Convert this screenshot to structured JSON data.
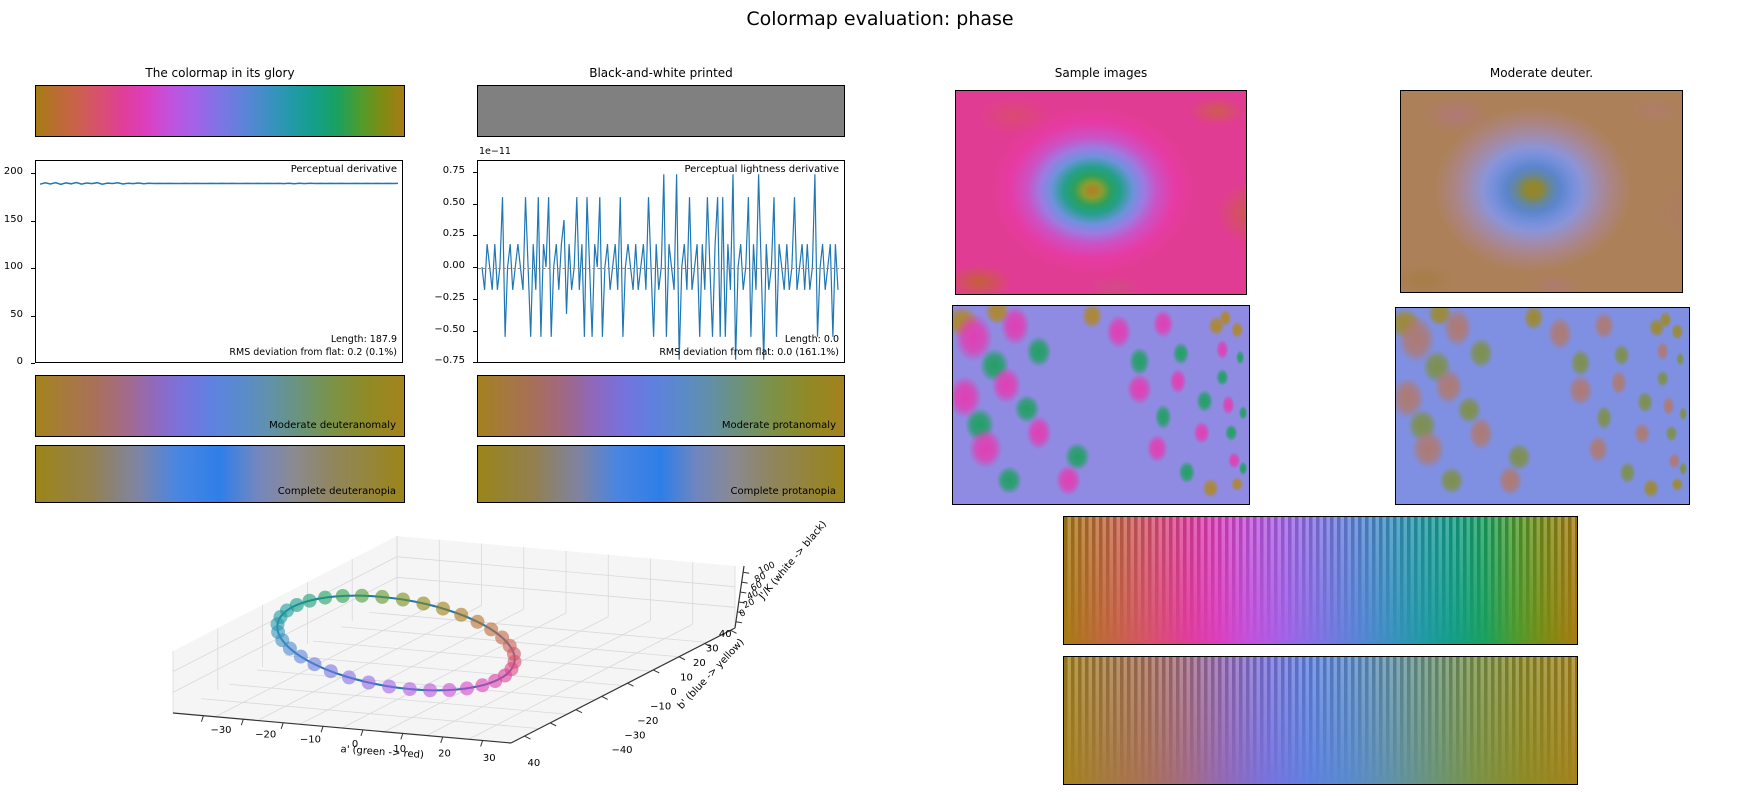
{
  "figure": {
    "title": "Colormap evaluation: phase"
  },
  "panels": {
    "glory_title": "The colormap in its glory",
    "bw_title": "Black-and-white printed",
    "samples_title": "Sample images",
    "deuter_title": "Moderate deuter."
  },
  "deriv_plot": {
    "legend": "Perceptual derivative",
    "ytick_labels": [
      "200",
      "150",
      "100",
      "50",
      "0"
    ],
    "annotation_line1": "Length: 187.9",
    "annotation_line2": "RMS deviation from flat: 0.2 (0.1%)"
  },
  "lightness_plot": {
    "legend": "Perceptual lightness derivative",
    "offset_label": "1e−11",
    "ytick_labels": [
      "0.75",
      "0.50",
      "0.25",
      "0.00",
      "−0.25",
      "−0.50",
      "−0.75"
    ],
    "annotation_line1": "Length: 0.0",
    "annotation_line2": "RMS deviation from flat: 0.0 (161.1%)"
  },
  "cvd_bars": {
    "deuteranomaly_label": "Moderate deuteranomaly",
    "deuteranopia_label": "Complete deuteranopia",
    "protanomaly_label": "Moderate protanomaly",
    "protanopia_label": "Complete protanopia"
  },
  "axes3d": {
    "xlabel": "a' (green -> red)",
    "ylabel": "b' (blue -> yellow)",
    "zlabel": "J'/K (white -> black)",
    "xtick_labels": [
      "−30",
      "−20",
      "−10",
      "0",
      "10",
      "20",
      "30",
      "40"
    ],
    "ytick_labels": [
      "−40",
      "−30",
      "−20",
      "−10",
      "0",
      "10",
      "20",
      "30",
      "40"
    ],
    "ztick_labels": [
      "0",
      "20",
      "40",
      "60",
      "80",
      "100"
    ]
  },
  "colors": {
    "line_blue": "#1f77b4",
    "gray_bar": "#808080",
    "grid_gray": "#d9d9d9",
    "pane_gray": "#f5f5f5",
    "zero_dash": "#8a8a8a"
  },
  "gradients": {
    "phase": [
      [
        0,
        "#A77B13"
      ],
      [
        0.06,
        "#BB6C33"
      ],
      [
        0.12,
        "#CC5F50"
      ],
      [
        0.18,
        "#DA4E74"
      ],
      [
        0.24,
        "#E03D9B"
      ],
      [
        0.3,
        "#DC3FBE"
      ],
      [
        0.36,
        "#C351DC"
      ],
      [
        0.43,
        "#A362E8"
      ],
      [
        0.5,
        "#7E74E4"
      ],
      [
        0.57,
        "#5A84D8"
      ],
      [
        0.64,
        "#3992C0"
      ],
      [
        0.7,
        "#219AA5"
      ],
      [
        0.76,
        "#149F88"
      ],
      [
        0.82,
        "#1AA15F"
      ],
      [
        0.88,
        "#4D9C2E"
      ],
      [
        0.94,
        "#7E8C14"
      ],
      [
        1,
        "#A77B13"
      ]
    ],
    "deuteranomaly": [
      [
        0,
        "#A4831D"
      ],
      [
        0.08,
        "#A67A3E"
      ],
      [
        0.16,
        "#A97158"
      ],
      [
        0.24,
        "#A46B85"
      ],
      [
        0.32,
        "#9169BC"
      ],
      [
        0.4,
        "#7873DE"
      ],
      [
        0.48,
        "#5F82E0"
      ],
      [
        0.56,
        "#5A8BCC"
      ],
      [
        0.64,
        "#6192A8"
      ],
      [
        0.72,
        "#6B9478"
      ],
      [
        0.8,
        "#7A9349"
      ],
      [
        0.9,
        "#8F8B25"
      ],
      [
        1,
        "#A4831D"
      ]
    ],
    "deuteranopia": [
      [
        0,
        "#9B8519"
      ],
      [
        0.15,
        "#948150"
      ],
      [
        0.28,
        "#7F84A6"
      ],
      [
        0.38,
        "#4A86E2"
      ],
      [
        0.5,
        "#2E7FE9"
      ],
      [
        0.6,
        "#7287C0"
      ],
      [
        0.7,
        "#8B8A92"
      ],
      [
        0.8,
        "#908660"
      ],
      [
        1,
        "#9B8519"
      ]
    ],
    "protanomaly": [
      [
        0,
        "#A3811E"
      ],
      [
        0.08,
        "#A57840"
      ],
      [
        0.16,
        "#A66E5C"
      ],
      [
        0.24,
        "#A06887"
      ],
      [
        0.32,
        "#8D68BE"
      ],
      [
        0.4,
        "#7672DE"
      ],
      [
        0.48,
        "#5E81DE"
      ],
      [
        0.56,
        "#5B8AC8"
      ],
      [
        0.64,
        "#6390A4"
      ],
      [
        0.72,
        "#6D9276"
      ],
      [
        0.8,
        "#7C914A"
      ],
      [
        0.9,
        "#908A26"
      ],
      [
        1,
        "#A3811E"
      ]
    ],
    "protanopia": [
      [
        0,
        "#9A8419"
      ],
      [
        0.15,
        "#93804E"
      ],
      [
        0.28,
        "#7E83A4"
      ],
      [
        0.38,
        "#4A85E0"
      ],
      [
        0.5,
        "#2E7EE8"
      ],
      [
        0.6,
        "#7186BE"
      ],
      [
        0.7,
        "#8A8990"
      ],
      [
        0.8,
        "#8F855E"
      ],
      [
        1,
        "#9A8419"
      ]
    ],
    "bw": [
      [
        0,
        "#808080"
      ],
      [
        1,
        "#808080"
      ]
    ]
  },
  "samples": {
    "starburst": {
      "base": "#E13C93",
      "center_pos": [
        47,
        49
      ],
      "center_size": [
        46,
        54
      ],
      "ring_colors": [
        "#B97B27",
        "#8D9C2E",
        "#2CA05C",
        "#23A089",
        "#6E92DC",
        "#9C7BE2",
        "#CC51C4",
        "#E63BA4"
      ],
      "blobs": [
        [
          8,
          94,
          16,
          12,
          "#C46038"
        ],
        [
          90,
          10,
          14,
          10,
          "#CF5B50"
        ],
        [
          101,
          60,
          16,
          22,
          "#CD5A4E"
        ],
        [
          20,
          12,
          18,
          14,
          "#DB4A72"
        ],
        [
          55,
          97,
          14,
          9,
          "#D14B86"
        ]
      ]
    },
    "starburst_deuter": {
      "base": "#AC8159",
      "center_pos": [
        47,
        49
      ],
      "center_size": [
        46,
        54
      ],
      "ring_colors": [
        "#9A8626",
        "#8B873A",
        "#64869E",
        "#5C85CC",
        "#7690DC",
        "#8C94D6",
        "#A08CAE",
        "#AC8480"
      ],
      "blobs": [
        [
          8,
          94,
          16,
          12,
          "#A67C46"
        ],
        [
          90,
          10,
          14,
          10,
          "#AF7D6A"
        ],
        [
          101,
          60,
          16,
          22,
          "#AD7C62"
        ],
        [
          20,
          12,
          18,
          14,
          "#B07876"
        ],
        [
          55,
          97,
          14,
          9,
          "#AE7C6E"
        ]
      ]
    },
    "waves": {
      "bg": "#8F8BE2",
      "m": "#E03FB4",
      "g": "#21A064",
      "d": "#AE882E",
      "m_lobes": [
        [
          7,
          16,
          9,
          17
        ],
        [
          21,
          10,
          7,
          14
        ],
        [
          4,
          46,
          8,
          15
        ],
        [
          18,
          40,
          7,
          13
        ],
        [
          11,
          72,
          8,
          14
        ],
        [
          29,
          64,
          6,
          12
        ],
        [
          39,
          88,
          6,
          11
        ],
        [
          56,
          13,
          6,
          12
        ],
        [
          71,
          9,
          5,
          10
        ],
        [
          63,
          42,
          6,
          11
        ],
        [
          76,
          38,
          4,
          9
        ],
        [
          69,
          72,
          5,
          10
        ],
        [
          84,
          64,
          4,
          8
        ],
        [
          91,
          22,
          3,
          7
        ],
        [
          93,
          50,
          3,
          7
        ],
        [
          95,
          78,
          3,
          6
        ]
      ],
      "g_lobes": [
        [
          14,
          30,
          7,
          12
        ],
        [
          29,
          23,
          6,
          11
        ],
        [
          9,
          60,
          7,
          12
        ],
        [
          25,
          52,
          6,
          10
        ],
        [
          19,
          88,
          6,
          10
        ],
        [
          42,
          76,
          6,
          10
        ],
        [
          63,
          28,
          5,
          10
        ],
        [
          77,
          24,
          4,
          8
        ],
        [
          71,
          56,
          4,
          9
        ],
        [
          85,
          48,
          4,
          8
        ],
        [
          79,
          84,
          4,
          8
        ],
        [
          91,
          36,
          3,
          6
        ],
        [
          94,
          64,
          3,
          6
        ],
        [
          97,
          26,
          2,
          5
        ],
        [
          98,
          54,
          2,
          5
        ],
        [
          98,
          82,
          2,
          5
        ]
      ],
      "d_lobes": [
        [
          3,
          8,
          8,
          11
        ],
        [
          15,
          3,
          6,
          9
        ],
        [
          47,
          5,
          5,
          9
        ],
        [
          89,
          10,
          4,
          7
        ],
        [
          96,
          12,
          3,
          6
        ],
        [
          87,
          92,
          4,
          7
        ],
        [
          96,
          90,
          3,
          5
        ],
        [
          92,
          6,
          3,
          6
        ]
      ]
    },
    "waves_deuter": {
      "bg": "#7F90E2",
      "m": "#AE7A72",
      "g": "#7E904A",
      "d": "#9D8A30"
    }
  },
  "chart_data": [
    {
      "id": "perceptual-derivative",
      "type": "line",
      "legend": "Perceptual derivative",
      "ylim": [
        0,
        213
      ],
      "yticks": [
        0,
        50,
        100,
        150,
        200
      ],
      "x_range_note": "colormap parameter 0..1, no x ticks shown",
      "flat_value": 187.9,
      "values": [
        187.2,
        188.6,
        187.4,
        188.8,
        187.1,
        188.5,
        187.6,
        188.9,
        187.3,
        188.4,
        187.8,
        188.7,
        187.2,
        188.3,
        187.9,
        188.6,
        187.4,
        188.2,
        187.8,
        188.4,
        187.6,
        188.1,
        187.9,
        188.0,
        187.9,
        188.0,
        187.9,
        187.9,
        188.0,
        187.9,
        188.0,
        187.9,
        187.9,
        188.0,
        187.9,
        188.0,
        187.9,
        188.0,
        187.9,
        187.9,
        188.0,
        187.9,
        188.0,
        187.9,
        188.0,
        187.9,
        188.0,
        187.8,
        188.2,
        187.7,
        188.1,
        187.8,
        188.2,
        187.9,
        188.0,
        187.9,
        188.0,
        187.9,
        188.0,
        187.9,
        187.9,
        188.0,
        187.9,
        188.0,
        187.9,
        188.0,
        187.9,
        188.0,
        187.9,
        188.0
      ],
      "annotations": [
        "Length: 187.9",
        "RMS deviation from flat: 0.2 (0.1%)"
      ]
    },
    {
      "id": "perceptual-lightness-derivative",
      "type": "line",
      "legend": "Perceptual lightness derivative",
      "scale_factor": "1e-11",
      "ylim": [
        -0.8,
        0.8
      ],
      "yticks": [
        0.75,
        0.5,
        0.25,
        0,
        -0.25,
        -0.5,
        -0.75
      ],
      "zero_line": true,
      "values_1e11": [
        0,
        -0.18,
        0.18,
        0,
        -0.18,
        0.18,
        -0.18,
        0,
        0.55,
        -0.55,
        0,
        0.18,
        -0.18,
        0,
        0.18,
        0,
        -0.18,
        0.55,
        0,
        -0.55,
        0.18,
        -0.18,
        0.55,
        -0.55,
        0.18,
        0,
        0.55,
        -0.55,
        0,
        0.18,
        -0.18,
        0.18,
        0.37,
        -0.37,
        0.18,
        -0.18,
        0,
        0.55,
        -0.18,
        0.18,
        -0.55,
        0.55,
        0,
        -0.55,
        0.18,
        0,
        0.55,
        -0.55,
        0,
        0.18,
        -0.18,
        0,
        0.18,
        -0.18,
        0.55,
        -0.55,
        0,
        0.18,
        0,
        -0.18,
        0.18,
        -0.18,
        0,
        0.18,
        -0.18,
        0.55,
        0,
        -0.55,
        0.18,
        -0.18,
        0,
        0.73,
        -0.55,
        0.18,
        0,
        -0.18,
        0.73,
        -0.73,
        0,
        0.18,
        -0.18,
        0.55,
        -0.18,
        0,
        0.18,
        -0.55,
        0.18,
        -0.18,
        0.55,
        0,
        -0.55,
        0.18,
        0.55,
        -0.55,
        0.55,
        -0.55,
        0.18,
        -0.18,
        0.73,
        -0.73,
        0,
        0.18,
        -0.18,
        0,
        0.55,
        -0.55,
        0.18,
        -0.18,
        0.73,
        0,
        -0.73,
        0.18,
        -0.18,
        0,
        0.55,
        -0.55,
        0.18,
        0,
        -0.18,
        0.18,
        -0.18,
        0,
        0.55,
        -0.18,
        0,
        0.18,
        -0.18,
        0.18,
        -0.18,
        0,
        0.73,
        -0.55,
        0,
        0.18,
        -0.18,
        0,
        0.18,
        -0.55,
        0.18,
        -0.18
      ],
      "annotations": [
        "Length: 0.0",
        "RMS deviation from flat: 0.0 (161.1%)"
      ]
    },
    {
      "id": "colormap-path-3d",
      "type": "scatter",
      "description": "Cyclic colormap path (ellipse) in CAM02-UCS space with colored markers",
      "xlabel": "a' (green -> red)",
      "ylabel": "b' (blue -> yellow)",
      "zlabel": "J'/K (white -> black)",
      "xticks": [
        -30,
        -20,
        -10,
        0,
        10,
        20,
        30,
        40
      ],
      "yticks": [
        -40,
        -30,
        -20,
        -10,
        0,
        10,
        20,
        30,
        40
      ],
      "zticks": [
        0,
        20,
        40,
        60,
        80,
        100
      ],
      "n_markers": 36
    }
  ]
}
